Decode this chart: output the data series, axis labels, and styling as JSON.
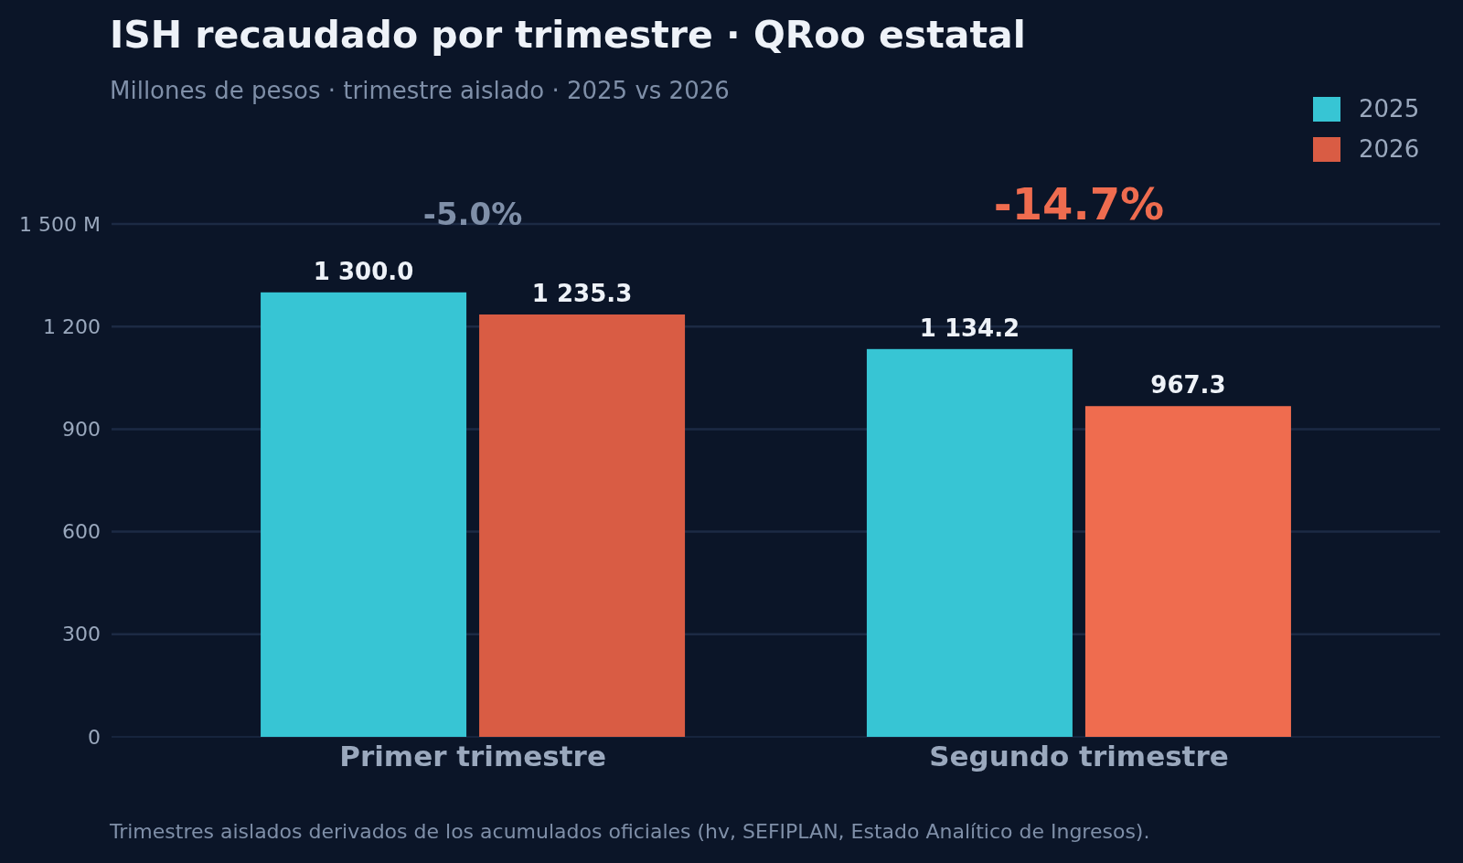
{
  "chart_data": {
    "type": "bar",
    "title": "ISH recaudado por trimestre · QRoo estatal",
    "subtitle": "Millones de pesos · trimestre aislado · 2025 vs 2026",
    "categories": [
      "Primer trimestre",
      "Segundo trimestre"
    ],
    "series": [
      {
        "name": "2025",
        "color": "#37c5d4",
        "values": [
          1300.0,
          1134.2
        ]
      },
      {
        "name": "2026",
        "color": "#d95c44",
        "colors": [
          "#d95c44",
          "#ef6c4f"
        ],
        "values": [
          1235.3,
          967.3
        ]
      }
    ],
    "ylim": [
      0,
      1500
    ],
    "yticks": [
      0,
      300,
      600,
      900,
      {
        "value": 1200,
        "label": "1 200"
      },
      {
        "value": 1500,
        "label": "1 500 M"
      }
    ],
    "grid": "y",
    "legend": "top right",
    "value_labels": [
      [
        "1 300.0",
        "1 134.2"
      ],
      [
        "1 235.3",
        "967.3"
      ]
    ],
    "annotations": [
      "-5.0%",
      "-14.7%",
      "Trimestres aislados derivados de los acumulados oficiales (hv, SEFIPLAN, Estado Analítico de Ingresos)."
    ]
  }
}
